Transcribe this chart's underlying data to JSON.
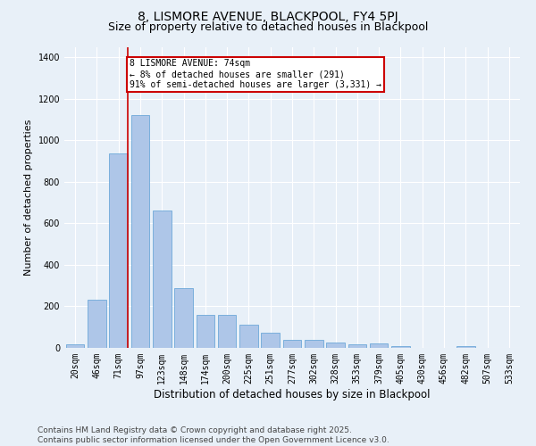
{
  "title": "8, LISMORE AVENUE, BLACKPOOL, FY4 5PJ",
  "subtitle": "Size of property relative to detached houses in Blackpool",
  "xlabel": "Distribution of detached houses by size in Blackpool",
  "ylabel": "Number of detached properties",
  "categories": [
    "20sqm",
    "46sqm",
    "71sqm",
    "97sqm",
    "123sqm",
    "148sqm",
    "174sqm",
    "200sqm",
    "225sqm",
    "251sqm",
    "277sqm",
    "302sqm",
    "328sqm",
    "353sqm",
    "379sqm",
    "405sqm",
    "430sqm",
    "456sqm",
    "482sqm",
    "507sqm",
    "533sqm"
  ],
  "values": [
    18,
    230,
    935,
    1120,
    660,
    290,
    160,
    160,
    110,
    75,
    40,
    40,
    25,
    18,
    20,
    8,
    0,
    0,
    8,
    0,
    0
  ],
  "bar_color": "#aec6e8",
  "bar_edgecolor": "#5a9fd4",
  "annotation_line1": "8 LISMORE AVENUE: 74sqm",
  "annotation_line2": "← 8% of detached houses are smaller (291)",
  "annotation_line3": "91% of semi-detached houses are larger (3,331) →",
  "annotation_box_color": "#ffffff",
  "annotation_box_edgecolor": "#cc0000",
  "red_line_color": "#cc0000",
  "ylim": [
    0,
    1450
  ],
  "yticks": [
    0,
    200,
    400,
    600,
    800,
    1000,
    1200,
    1400
  ],
  "background_color": "#e8f0f8",
  "footnote": "Contains HM Land Registry data © Crown copyright and database right 2025.\nContains public sector information licensed under the Open Government Licence v3.0.",
  "title_fontsize": 10,
  "subtitle_fontsize": 9,
  "axis_label_fontsize": 8,
  "tick_fontsize": 7,
  "footnote_fontsize": 6.5,
  "annotation_fontsize": 7
}
